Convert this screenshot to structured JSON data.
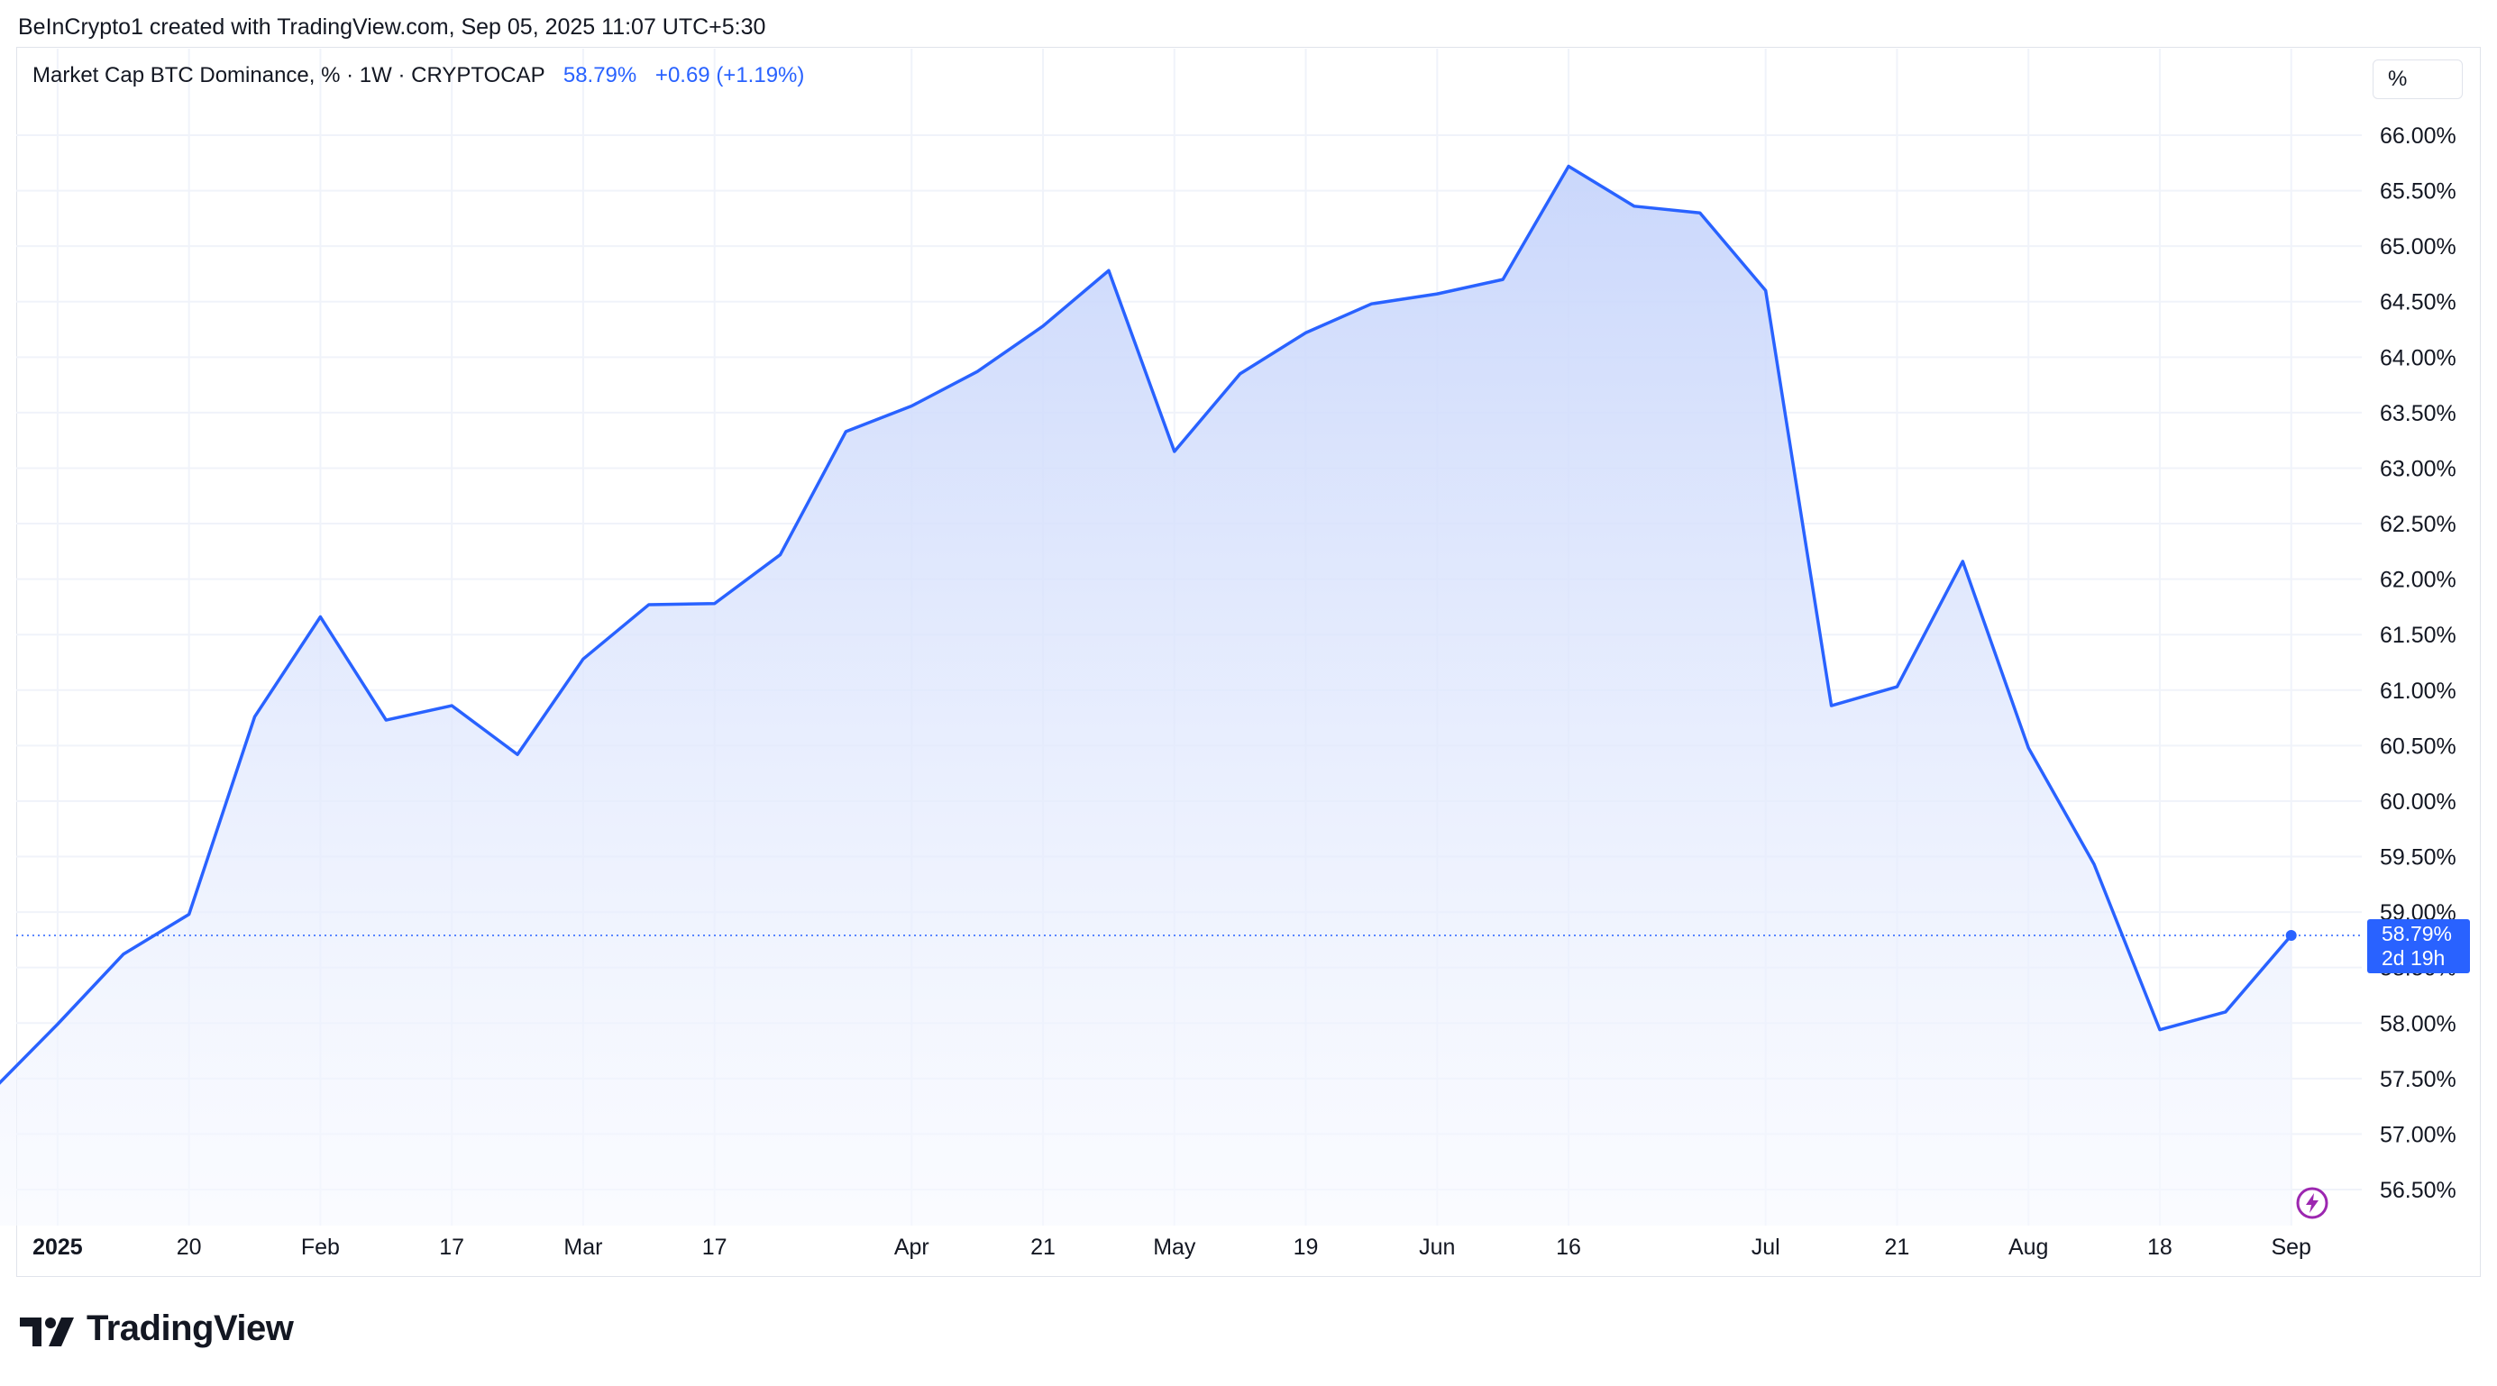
{
  "header": {
    "credit": "BeInCrypto1 created with TradingView.com, Sep 05, 2025 11:07 UTC+5:30"
  },
  "legend": {
    "symbol": "Market Cap BTC Dominance, % · 1W · CRYPTOCAP",
    "last": "58.79%",
    "change": "+0.69 (+1.19%)"
  },
  "scale_button": {
    "label": "%"
  },
  "price_tag": {
    "value": "58.79%",
    "countdown": "2d 19h"
  },
  "branding": {
    "name": "TradingView"
  },
  "colors": {
    "line": "#2962ff",
    "fill_top": "#c7d5fb",
    "fill_bottom": "#f7f9ff",
    "grid": "#f0f3fa",
    "tag": "#2962ff"
  },
  "icons": {
    "event": "lightning-icon",
    "logo": "tradingview-logo-icon"
  },
  "chart_data": {
    "type": "area",
    "title": "Market Cap BTC Dominance, % · 1W · CRYPTOCAP",
    "xlabel": "",
    "ylabel": "",
    "ylim": [
      56.0,
      66.5
    ],
    "y_ticks": [
      56.5,
      57.0,
      57.5,
      58.0,
      58.5,
      59.0,
      59.5,
      60.0,
      60.5,
      61.0,
      61.5,
      62.0,
      62.5,
      63.0,
      63.5,
      64.0,
      64.5,
      65.0,
      65.5,
      66.0
    ],
    "y_tick_labels": [
      "56.50%",
      "57.00%",
      "57.50%",
      "58.00%",
      "58.50%",
      "59.00%",
      "59.50%",
      "60.00%",
      "60.50%",
      "61.00%",
      "61.50%",
      "62.00%",
      "62.50%",
      "63.00%",
      "63.50%",
      "64.00%",
      "64.50%",
      "65.00%",
      "65.50%",
      "66.00%"
    ],
    "x_ticks": [
      {
        "index": 1,
        "label": "2025",
        "bold": true
      },
      {
        "index": 3,
        "label": "20"
      },
      {
        "index": 5,
        "label": "Feb"
      },
      {
        "index": 7,
        "label": "17"
      },
      {
        "index": 9,
        "label": "Mar"
      },
      {
        "index": 11,
        "label": "17"
      },
      {
        "index": 14,
        "label": "Apr"
      },
      {
        "index": 16,
        "label": "21"
      },
      {
        "index": 18,
        "label": "May"
      },
      {
        "index": 20,
        "label": "19"
      },
      {
        "index": 22,
        "label": "Jun"
      },
      {
        "index": 24,
        "label": "16"
      },
      {
        "index": 27,
        "label": "Jul"
      },
      {
        "index": 29,
        "label": "21"
      },
      {
        "index": 31,
        "label": "Aug"
      },
      {
        "index": 33,
        "label": "18"
      },
      {
        "index": 35,
        "label": "Sep"
      }
    ],
    "x_range": [
      0.37,
      35.8
    ],
    "series": [
      {
        "values": [
          57.39,
          57.99,
          58.62,
          58.98,
          60.76,
          61.66,
          60.73,
          60.86,
          60.42,
          61.28,
          61.77,
          61.78,
          62.22,
          63.33,
          63.56,
          63.87,
          64.28,
          64.78,
          63.15,
          63.85,
          64.22,
          64.48,
          64.57,
          64.7,
          65.72,
          65.36,
          65.3,
          64.6,
          60.86,
          61.03,
          62.16,
          60.48,
          59.43,
          57.94,
          58.1,
          58.79
        ]
      }
    ],
    "last_value": 58.79,
    "last_value_line": true,
    "grid": true,
    "y_axis_position": "right"
  }
}
